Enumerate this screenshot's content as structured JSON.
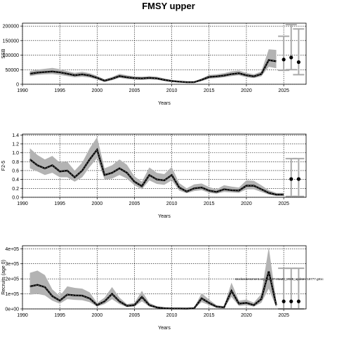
{
  "figure_title": "FMSY upper",
  "watermark": "stockassessment.org.had.27.46a20_2025_update.r19777.g81c",
  "chart_data": [
    {
      "type": "line",
      "name": "ssb",
      "xlabel": "Years",
      "ylabel": "SSB",
      "xlim": [
        1990,
        2028
      ],
      "ylim": [
        0,
        210000
      ],
      "xticks": [
        1990,
        1995,
        2000,
        2005,
        2010,
        2015,
        2020,
        2025
      ],
      "yticks": [
        0,
        50000,
        100000,
        150000,
        200000
      ],
      "ytick_labels": [
        "0",
        "50000",
        "100000",
        "150000",
        "200000"
      ],
      "grid": true,
      "x": [
        1991,
        1992,
        1993,
        1994,
        1995,
        1996,
        1997,
        1998,
        1999,
        2000,
        2001,
        2002,
        2003,
        2004,
        2005,
        2006,
        2007,
        2008,
        2009,
        2010,
        2011,
        2012,
        2013,
        2014,
        2015,
        2016,
        2017,
        2018,
        2019,
        2020,
        2021,
        2022,
        2023,
        2024
      ],
      "estimate": [
        36000,
        40000,
        42000,
        44000,
        41000,
        36000,
        31000,
        34000,
        30000,
        22000,
        12000,
        19000,
        28000,
        24000,
        21000,
        20000,
        22000,
        20000,
        15000,
        11000,
        9000,
        7000,
        7000,
        15000,
        25000,
        27000,
        30000,
        35000,
        38000,
        31000,
        27000,
        35000,
        83000,
        79000
      ],
      "lower": [
        28000,
        32000,
        34000,
        35000,
        32000,
        28000,
        24000,
        26000,
        23000,
        16000,
        8000,
        14000,
        22000,
        18000,
        16000,
        15000,
        17000,
        16000,
        11000,
        8000,
        6000,
        5000,
        5000,
        11000,
        19000,
        21000,
        24000,
        28000,
        31000,
        24000,
        21000,
        27000,
        60000,
        55000
      ],
      "upper": [
        45000,
        50000,
        53000,
        56000,
        52000,
        45000,
        39000,
        43000,
        38000,
        29000,
        17000,
        25000,
        36000,
        31000,
        27000,
        26000,
        28000,
        26000,
        20000,
        15000,
        12000,
        10000,
        10000,
        20000,
        32000,
        34000,
        38000,
        44000,
        47000,
        39000,
        34000,
        44000,
        120000,
        118000
      ],
      "forecast": {
        "x": [
          2025,
          2026,
          2027
        ],
        "median": [
          85000,
          92000,
          76000
        ],
        "lower": [
          48000,
          50000,
          33000
        ],
        "upper": [
          165000,
          205000,
          190000
        ]
      }
    },
    {
      "type": "line",
      "name": "fbar",
      "xlabel": "Years",
      "ylabel": "F2-5",
      "xlim": [
        1990,
        2028
      ],
      "ylim": [
        0,
        1.42
      ],
      "xticks": [
        1990,
        1995,
        2000,
        2005,
        2010,
        2015,
        2020,
        2025
      ],
      "yticks": [
        0.0,
        0.2,
        0.4,
        0.6,
        0.8,
        1.0,
        1.2,
        1.4
      ],
      "ytick_labels": [
        "0.0",
        "0.2",
        "0.4",
        "0.6",
        "0.8",
        "1.0",
        "1.2",
        "1.4"
      ],
      "grid": true,
      "x": [
        1991,
        1992,
        1993,
        1994,
        1995,
        1996,
        1997,
        1998,
        1999,
        2000,
        2001,
        2002,
        2003,
        2004,
        2005,
        2006,
        2007,
        2008,
        2009,
        2010,
        2011,
        2012,
        2013,
        2014,
        2015,
        2016,
        2017,
        2018,
        2019,
        2020,
        2021,
        2022,
        2023,
        2024,
        2025
      ],
      "estimate": [
        0.85,
        0.72,
        0.65,
        0.72,
        0.58,
        0.6,
        0.45,
        0.6,
        0.85,
        1.07,
        0.5,
        0.55,
        0.65,
        0.55,
        0.35,
        0.25,
        0.5,
        0.4,
        0.38,
        0.5,
        0.22,
        0.13,
        0.2,
        0.22,
        0.15,
        0.12,
        0.18,
        0.16,
        0.15,
        0.26,
        0.26,
        0.18,
        0.1,
        0.06,
        0.06
      ],
      "lower": [
        0.65,
        0.58,
        0.5,
        0.55,
        0.45,
        0.45,
        0.35,
        0.45,
        0.68,
        0.88,
        0.4,
        0.42,
        0.5,
        0.42,
        0.27,
        0.18,
        0.38,
        0.3,
        0.28,
        0.38,
        0.15,
        0.09,
        0.14,
        0.16,
        0.1,
        0.08,
        0.12,
        0.11,
        0.1,
        0.18,
        0.18,
        0.12,
        0.06,
        0.03,
        0.03
      ],
      "upper": [
        1.1,
        0.95,
        0.85,
        0.93,
        0.78,
        0.8,
        0.6,
        0.78,
        1.1,
        1.35,
        0.65,
        0.72,
        0.85,
        0.73,
        0.47,
        0.35,
        0.67,
        0.55,
        0.52,
        0.68,
        0.32,
        0.2,
        0.29,
        0.31,
        0.23,
        0.18,
        0.27,
        0.24,
        0.22,
        0.38,
        0.37,
        0.27,
        0.16,
        0.1,
        0.1
      ],
      "forecast": {
        "x": [
          2026,
          2027
        ],
        "median": [
          0.41,
          0.41
        ],
        "lower": [
          0.02,
          0.02
        ],
        "upper": [
          0.87,
          0.87
        ]
      }
    },
    {
      "type": "line",
      "name": "recruitment",
      "xlabel": "Years",
      "ylabel": "Recruits (age 0)",
      "xlim": [
        1990,
        2028
      ],
      "ylim": [
        0,
        420000
      ],
      "xticks": [
        1990,
        1995,
        2000,
        2005,
        2010,
        2015,
        2020,
        2025
      ],
      "yticks": [
        0,
        100000,
        200000,
        300000,
        400000
      ],
      "ytick_labels": [
        "0e+00",
        "1e+05",
        "2e+05",
        "3e+05",
        "4e+05"
      ],
      "grid": true,
      "x": [
        1991,
        1992,
        1993,
        1994,
        1995,
        1996,
        1997,
        1998,
        1999,
        2000,
        2001,
        2002,
        2003,
        2004,
        2005,
        2006,
        2007,
        2008,
        2009,
        2010,
        2011,
        2012,
        2013,
        2014,
        2015,
        2016,
        2017,
        2018,
        2019,
        2020,
        2021,
        2022,
        2023,
        2024
      ],
      "estimate": [
        150000,
        160000,
        145000,
        85000,
        55000,
        95000,
        90000,
        88000,
        70000,
        25000,
        50000,
        100000,
        50000,
        20000,
        25000,
        80000,
        25000,
        10000,
        5000,
        3000,
        3000,
        2000,
        4000,
        70000,
        40000,
        15000,
        10000,
        120000,
        35000,
        40000,
        25000,
        65000,
        250000,
        25000
      ],
      "lower": [
        95000,
        100000,
        90000,
        55000,
        35000,
        65000,
        60000,
        58000,
        45000,
        15000,
        32000,
        65000,
        32000,
        12000,
        15000,
        50000,
        15000,
        5000,
        2000,
        1000,
        1000,
        500,
        1500,
        45000,
        25000,
        8000,
        5000,
        80000,
        20000,
        25000,
        15000,
        40000,
        135000,
        10000
      ],
      "upper": [
        240000,
        255000,
        225000,
        130000,
        85000,
        150000,
        140000,
        135000,
        110000,
        40000,
        75000,
        145000,
        75000,
        32000,
        40000,
        120000,
        40000,
        18000,
        10000,
        6000,
        6000,
        4000,
        8000,
        105000,
        62000,
        25000,
        18000,
        175000,
        55000,
        62000,
        42000,
        100000,
        410000,
        50000
      ],
      "forecast": {
        "x": [
          2025,
          2026,
          2027
        ],
        "median": [
          50000,
          50000,
          50000
        ],
        "lower": [
          0,
          0,
          0
        ],
        "upper": [
          270000,
          270000,
          270000
        ]
      }
    }
  ]
}
